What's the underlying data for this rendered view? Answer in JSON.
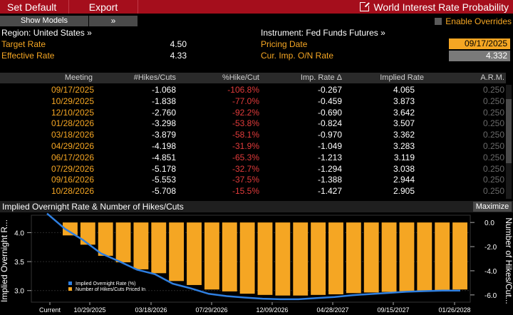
{
  "toolbar": {
    "set_default": "Set Default",
    "export": "Export",
    "app_title": "World Interest Rate Probability"
  },
  "controls": {
    "show_models": "Show Models",
    "expand": "»",
    "enable_overrides": "Enable Overrides"
  },
  "info": {
    "region": "Region: United States »",
    "target_rate_label": "Target Rate",
    "target_rate": "4.50",
    "effective_rate_label": "Effective Rate",
    "effective_rate": "4.33",
    "instrument": "Instrument: Fed Funds Futures »",
    "pricing_date_label": "Pricing Date",
    "pricing_date": "09/17/2025",
    "cur_imp_label": "Cur. Imp. O/N Rate",
    "cur_imp": "4.332"
  },
  "table": {
    "headers": [
      "Meeting",
      "#Hikes/Cuts",
      "%Hike/Cut",
      "Imp. Rate Δ",
      "Implied Rate",
      "A.R.M."
    ],
    "rows": [
      [
        "09/17/2025",
        "-1.068",
        "-106.8%",
        "-0.267",
        "4.065",
        "0.250"
      ],
      [
        "10/29/2025",
        "-1.838",
        "-77.0%",
        "-0.459",
        "3.873",
        "0.250"
      ],
      [
        "12/10/2025",
        "-2.760",
        "-92.2%",
        "-0.690",
        "3.642",
        "0.250"
      ],
      [
        "01/28/2026",
        "-3.298",
        "-53.8%",
        "-0.824",
        "3.507",
        "0.250"
      ],
      [
        "03/18/2026",
        "-3.879",
        "-58.1%",
        "-0.970",
        "3.362",
        "0.250"
      ],
      [
        "04/29/2026",
        "-4.198",
        "-31.9%",
        "-1.049",
        "3.283",
        "0.250"
      ],
      [
        "06/17/2026",
        "-4.851",
        "-65.3%",
        "-1.213",
        "3.119",
        "0.250"
      ],
      [
        "07/29/2026",
        "-5.178",
        "-32.7%",
        "-1.294",
        "3.038",
        "0.250"
      ],
      [
        "09/16/2026",
        "-5.553",
        "-37.5%",
        "-1.388",
        "2.944",
        "0.250"
      ],
      [
        "10/28/2026",
        "-5.708",
        "-15.5%",
        "-1.427",
        "2.905",
        "0.250"
      ]
    ]
  },
  "chart_panel": {
    "title": "Implied Overnight Rate & Number of Hikes/Cuts",
    "maximize": "Maximize"
  },
  "chart_data": {
    "type": "bar",
    "ylabel": "Implied Overnight R...",
    "y2label": "Number of Hikes/Cut...",
    "ylim": [
      2.8,
      4.3
    ],
    "y2lim": [
      -6.6,
      0.6
    ],
    "yticks": [
      "4.0",
      "3.5",
      "3.0"
    ],
    "y2ticks": [
      "0.0",
      "-2.0",
      "-4.0",
      "-6.0"
    ],
    "xticks": [
      "Current",
      "10/29/2025",
      "03/18/2026",
      "07/29/2026",
      "12/09/2026",
      "04/28/2027",
      "09/15/2027",
      "01/26/2028"
    ],
    "legend": [
      "Implied Overnight Rate (%)",
      "Number of Hikes/Cuts Priced In"
    ],
    "legend_position": "bottom-left",
    "colors": {
      "line": "#2f7fe0",
      "bars": "#f5a623"
    },
    "series": [
      {
        "name": "Number of Hikes/Cuts Priced In",
        "values": [
          -1.07,
          -1.84,
          -2.76,
          -3.3,
          -3.88,
          -4.2,
          -4.85,
          -5.18,
          -5.55,
          -5.71,
          -5.9,
          -6.0,
          -6.05,
          -6.05,
          -6.0,
          -5.95,
          -5.85,
          -5.8,
          -5.75,
          -5.7,
          -5.65,
          -5.6,
          -5.55
        ]
      },
      {
        "name": "Implied Overnight Rate (%)",
        "values": [
          4.33,
          4.065,
          3.873,
          3.642,
          3.507,
          3.362,
          3.283,
          3.119,
          3.038,
          2.944,
          2.905,
          2.88,
          2.86,
          2.85,
          2.85,
          2.87,
          2.89,
          2.92,
          2.94,
          2.96,
          2.98,
          2.99,
          3.0,
          3.0
        ]
      }
    ]
  }
}
